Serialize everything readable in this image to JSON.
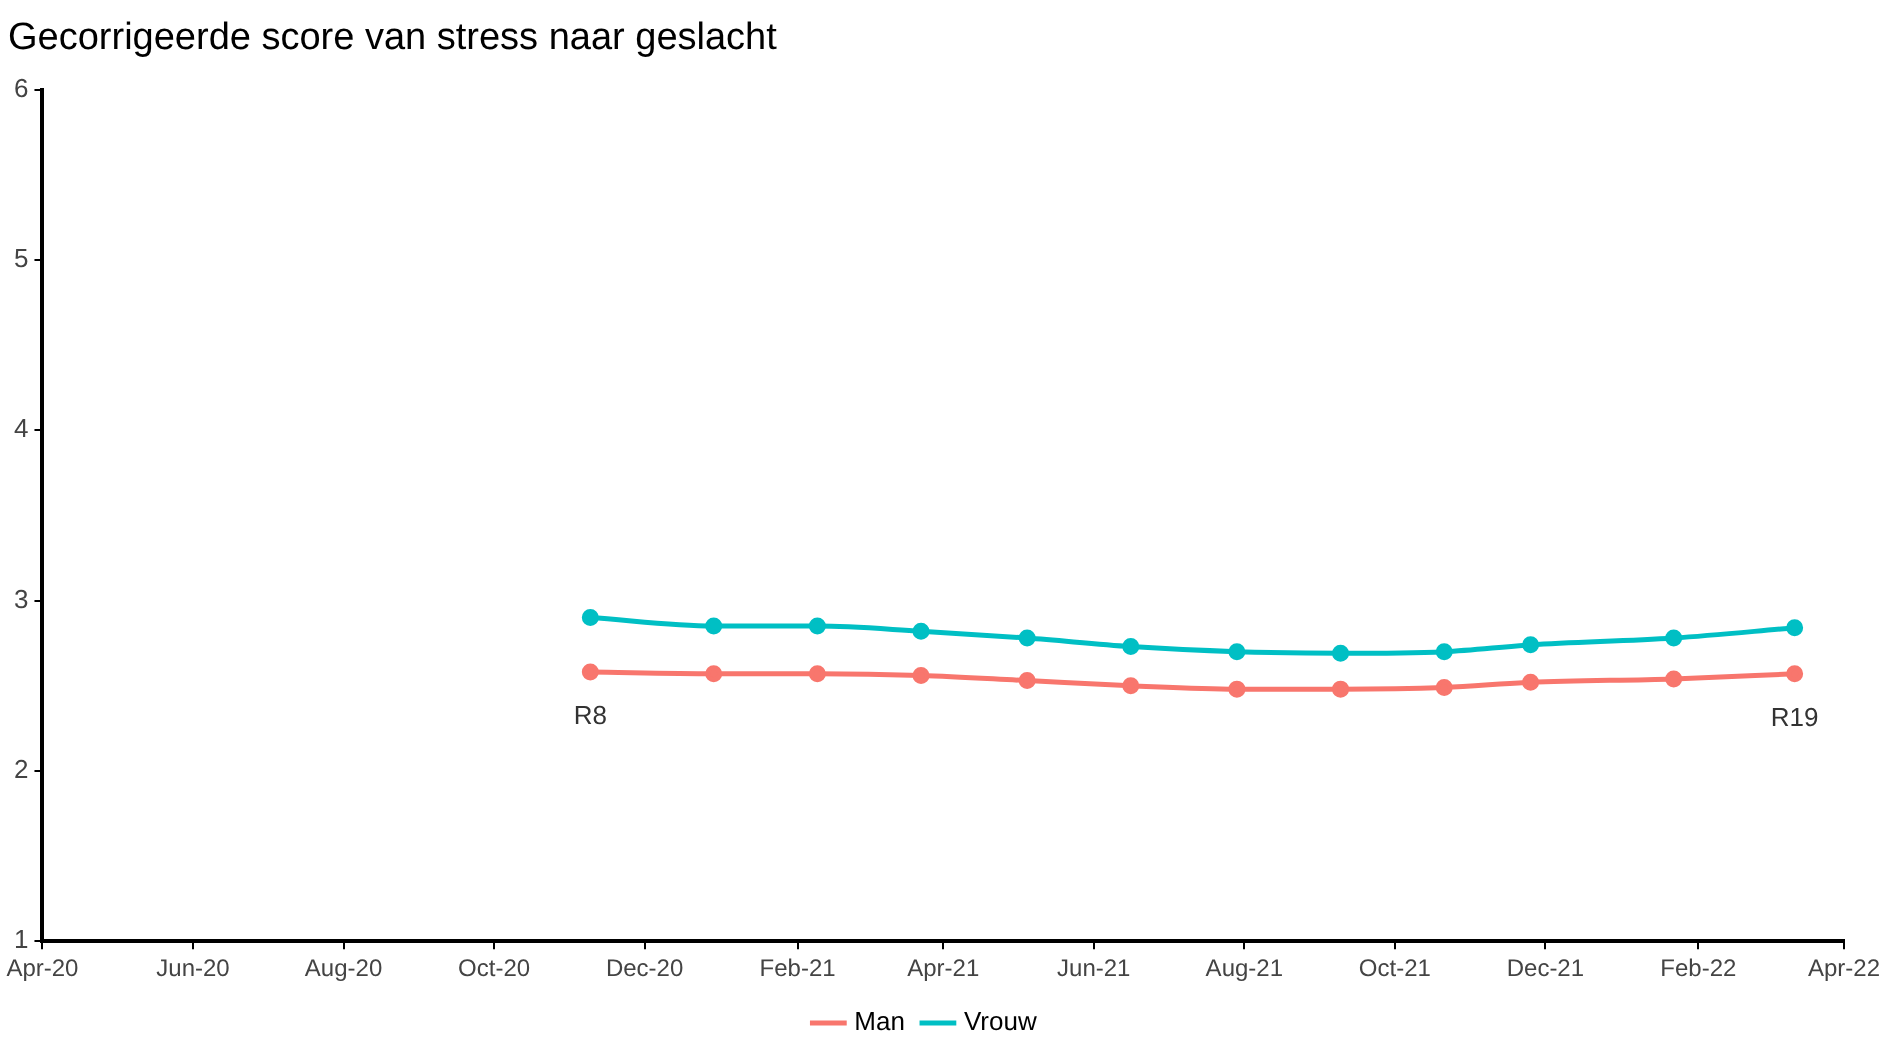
{
  "chart_data": {
    "type": "line",
    "title": "Gecorrigeerde score van stress naar geslacht",
    "x": [
      "2020-11-09",
      "2020-12-29",
      "2021-02-09",
      "2021-03-23",
      "2021-05-05",
      "2021-06-16",
      "2021-07-29",
      "2021-09-09",
      "2021-10-21",
      "2021-11-25",
      "2022-01-22",
      "2022-03-12"
    ],
    "series": [
      {
        "name": "Man",
        "color": "#f8766d",
        "values": [
          2.58,
          2.57,
          2.57,
          2.56,
          2.53,
          2.5,
          2.48,
          2.48,
          2.49,
          2.52,
          2.54,
          2.57
        ]
      },
      {
        "name": "Vrouw",
        "color": "#00bfc4",
        "values": [
          2.9,
          2.85,
          2.85,
          2.82,
          2.78,
          2.73,
          2.7,
          2.69,
          2.7,
          2.74,
          2.78,
          2.84
        ]
      }
    ],
    "xlim": [
      "2020-04",
      "2022-04"
    ],
    "xticks": [
      {
        "value": "2020-04",
        "label": "Apr-20"
      },
      {
        "value": "2020-06",
        "label": "Jun-20"
      },
      {
        "value": "2020-08",
        "label": "Aug-20"
      },
      {
        "value": "2020-10",
        "label": "Oct-20"
      },
      {
        "value": "2020-12",
        "label": "Dec-20"
      },
      {
        "value": "2021-02",
        "label": "Feb-21"
      },
      {
        "value": "2021-04",
        "label": "Apr-21"
      },
      {
        "value": "2021-06",
        "label": "Jun-21"
      },
      {
        "value": "2021-08",
        "label": "Aug-21"
      },
      {
        "value": "2021-10",
        "label": "Oct-21"
      },
      {
        "value": "2021-12",
        "label": "Dec-21"
      },
      {
        "value": "2022-02",
        "label": "Feb-22"
      },
      {
        "value": "2022-04",
        "label": "Apr-22"
      }
    ],
    "ylim": [
      1,
      6
    ],
    "yticks": [
      1,
      2,
      3,
      4,
      5,
      6
    ],
    "annotations": [
      {
        "text": "R8",
        "x": "2020-11-09",
        "y": 2.58
      },
      {
        "text": "R19",
        "x": "2022-03-12",
        "y": 2.57
      }
    ],
    "grid": false,
    "legend": "bottom",
    "marker": "circle",
    "line_style": "solid"
  }
}
